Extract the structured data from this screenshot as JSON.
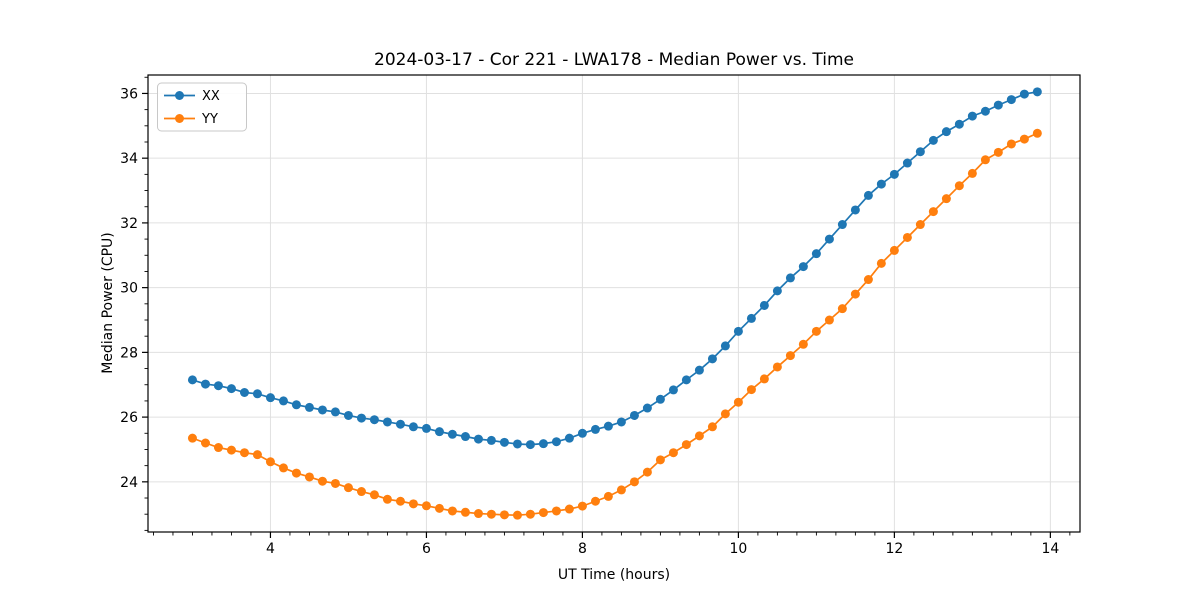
{
  "figure": {
    "background": "#ffffff",
    "frame_color": "#000000",
    "grid_color": "#e0e0e0"
  },
  "chart_data": {
    "type": "line",
    "title": "2024-03-17 - Cor 221 - LWA178 - Median Power vs. Time",
    "xlabel": "UT Time (hours)",
    "ylabel": "Median Power (CPU)",
    "xlim": [
      2.43,
      14.38
    ],
    "ylim": [
      22.45,
      36.57
    ],
    "x_ticks": [
      4,
      6,
      8,
      10,
      12,
      14
    ],
    "y_ticks": [
      24,
      26,
      28,
      30,
      32,
      34,
      36
    ],
    "x_minor_step": 0.25,
    "y_minor_step": 0.5,
    "grid": true,
    "legend_position": "upper-left",
    "marker": "circle",
    "x": [
      3.0,
      3.167,
      3.333,
      3.5,
      3.667,
      3.833,
      4.0,
      4.167,
      4.333,
      4.5,
      4.667,
      4.833,
      5.0,
      5.167,
      5.333,
      5.5,
      5.667,
      5.833,
      6.0,
      6.167,
      6.333,
      6.5,
      6.667,
      6.833,
      7.0,
      7.167,
      7.333,
      7.5,
      7.667,
      7.833,
      8.0,
      8.167,
      8.333,
      8.5,
      8.667,
      8.833,
      9.0,
      9.167,
      9.333,
      9.5,
      9.667,
      9.833,
      10.0,
      10.167,
      10.333,
      10.5,
      10.667,
      10.833,
      11.0,
      11.167,
      11.333,
      11.5,
      11.667,
      11.833,
      12.0,
      12.167,
      12.333,
      12.5,
      12.667,
      12.833,
      13.0,
      13.167,
      13.333,
      13.5,
      13.667,
      13.833
    ],
    "series": [
      {
        "name": "XX",
        "color": "#1f77b4",
        "values": [
          27.15,
          27.02,
          26.97,
          26.88,
          26.76,
          26.72,
          26.6,
          26.5,
          26.38,
          26.3,
          26.22,
          26.16,
          26.05,
          25.97,
          25.92,
          25.85,
          25.78,
          25.7,
          25.65,
          25.55,
          25.47,
          25.4,
          25.32,
          25.28,
          25.22,
          25.17,
          25.15,
          25.18,
          25.24,
          25.35,
          25.5,
          25.62,
          25.72,
          25.85,
          26.05,
          26.28,
          26.55,
          26.84,
          27.15,
          27.45,
          27.8,
          28.2,
          28.65,
          29.05,
          29.45,
          29.9,
          30.3,
          30.65,
          31.05,
          31.5,
          31.95,
          32.4,
          32.85,
          33.2,
          33.5,
          33.85,
          34.2,
          34.55,
          34.82,
          35.05,
          35.3,
          35.45,
          35.64,
          35.81,
          35.98,
          36.05
        ]
      },
      {
        "name": "YY",
        "color": "#ff7f0e",
        "values": [
          25.35,
          25.2,
          25.06,
          24.98,
          24.9,
          24.84,
          24.62,
          24.43,
          24.27,
          24.15,
          24.02,
          23.95,
          23.82,
          23.7,
          23.6,
          23.46,
          23.4,
          23.32,
          23.26,
          23.18,
          23.1,
          23.06,
          23.02,
          23.0,
          22.98,
          22.97,
          23.0,
          23.05,
          23.1,
          23.16,
          23.25,
          23.4,
          23.55,
          23.75,
          24.0,
          24.3,
          24.68,
          24.9,
          25.15,
          25.42,
          25.7,
          26.1,
          26.46,
          26.85,
          27.18,
          27.55,
          27.9,
          28.25,
          28.65,
          29.0,
          29.35,
          29.8,
          30.25,
          30.75,
          31.15,
          31.55,
          31.95,
          32.35,
          32.75,
          33.15,
          33.53,
          33.95,
          34.18,
          34.44,
          34.59,
          34.77
        ]
      }
    ]
  }
}
